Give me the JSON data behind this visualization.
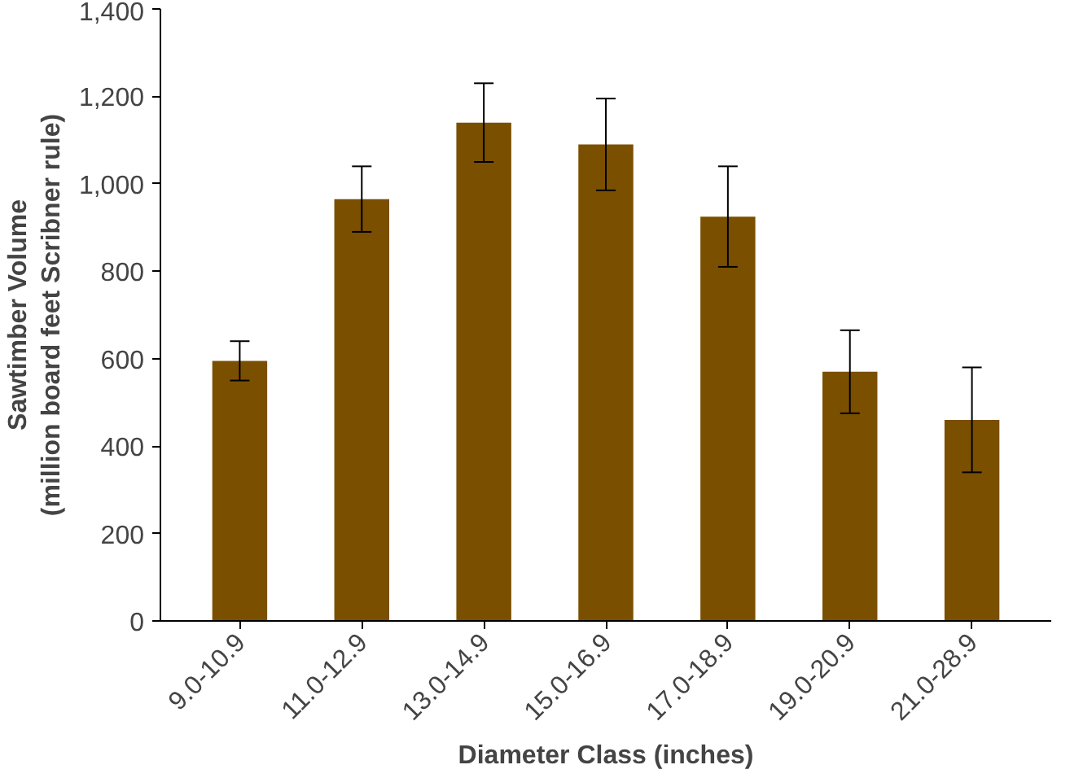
{
  "chart_data": {
    "type": "bar",
    "xlabel": "Diameter Class (inches)",
    "ylabel": "Sawtimber Volume\n(million board feet Scribner rule)",
    "categories": [
      "9.0-10.9",
      "11.0-12.9",
      "13.0-14.9",
      "15.0-16.9",
      "17.0-18.9",
      "19.0-20.9",
      "21.0-28.9"
    ],
    "values": [
      595,
      965,
      1140,
      1090,
      925,
      570,
      460
    ],
    "errors": [
      45,
      75,
      90,
      105,
      115,
      95,
      120
    ],
    "color": "#7a4f00",
    "ylim": [
      0,
      1400
    ],
    "yticks": [
      0,
      200,
      400,
      600,
      800,
      {
        "value": 1000,
        "label": "1,000"
      },
      {
        "value": 1200,
        "label": "1,200"
      },
      {
        "value": 1400,
        "label": "1,400"
      }
    ],
    "grid": false
  }
}
